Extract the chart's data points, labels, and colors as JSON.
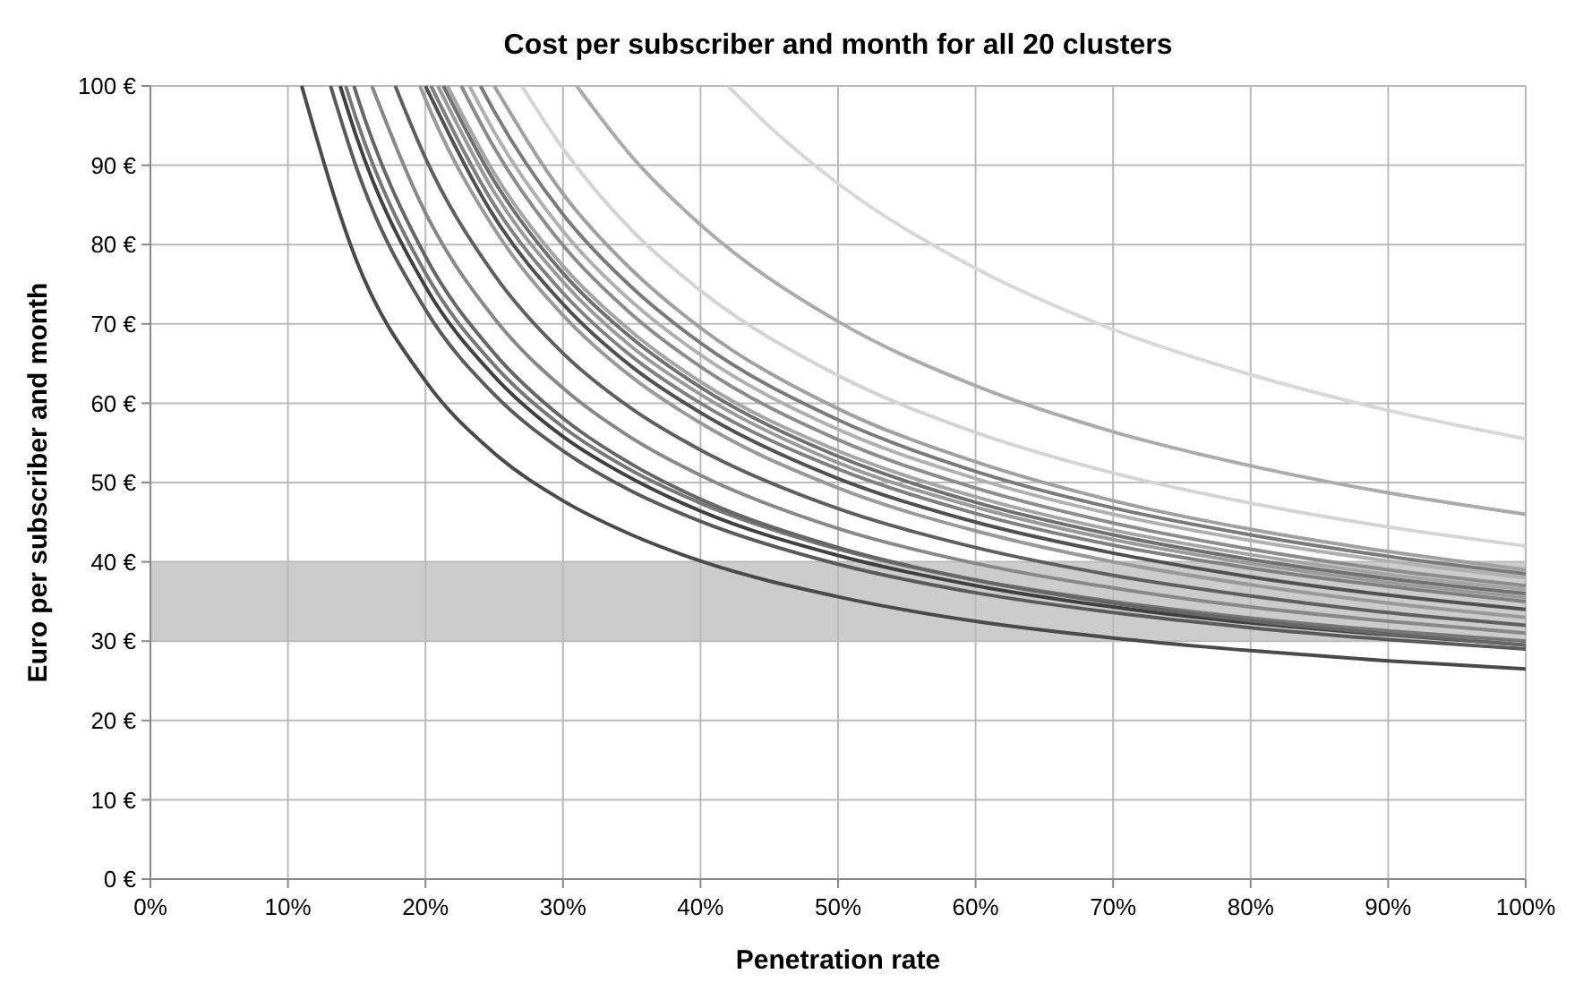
{
  "chart_data": {
    "type": "line",
    "title": "Cost per subscriber and month for all 20 clusters",
    "xlabel": "Penetration rate",
    "ylabel": "Euro per subscriber and month",
    "xlim": [
      0,
      100
    ],
    "ylim": [
      0,
      100
    ],
    "xticks": [
      {
        "value": 0,
        "label": "0%"
      },
      {
        "value": 10,
        "label": "10%"
      },
      {
        "value": 20,
        "label": "20%"
      },
      {
        "value": 30,
        "label": "30%"
      },
      {
        "value": 40,
        "label": "40%"
      },
      {
        "value": 50,
        "label": "50%"
      },
      {
        "value": 60,
        "label": "60%"
      },
      {
        "value": 70,
        "label": "70%"
      },
      {
        "value": 80,
        "label": "80%"
      },
      {
        "value": 90,
        "label": "90%"
      },
      {
        "value": 100,
        "label": "100%"
      }
    ],
    "yticks": [
      {
        "value": 0,
        "label": "0 €"
      },
      {
        "value": 10,
        "label": "10 €"
      },
      {
        "value": 20,
        "label": "20 €"
      },
      {
        "value": 30,
        "label": "30 €"
      },
      {
        "value": 40,
        "label": "40 €"
      },
      {
        "value": 50,
        "label": "50 €"
      },
      {
        "value": 60,
        "label": "60 €"
      },
      {
        "value": 70,
        "label": "70 €"
      },
      {
        "value": 80,
        "label": "80 €"
      },
      {
        "value": 90,
        "label": "90 €"
      },
      {
        "value": 100,
        "label": "100 €"
      }
    ],
    "grid": true,
    "bands": [
      {
        "axis": "y",
        "from": 30,
        "to": 40,
        "color": "#cccccc"
      }
    ],
    "series": [
      {
        "color": "#4a4a4a",
        "x": [
          11,
          15,
          20,
          25,
          30,
          35,
          40,
          50,
          60,
          70,
          80,
          90,
          100
        ],
        "values": [
          100,
          77.9,
          62.8,
          53.7,
          47.7,
          43.4,
          40.1,
          35.6,
          32.5,
          30.4,
          28.8,
          27.5,
          26.5
        ]
      },
      {
        "color": "#5a5a5a",
        "x": [
          13.1,
          15,
          20,
          25,
          30,
          35,
          40,
          50,
          60,
          70,
          80,
          90,
          100
        ],
        "values": [
          100,
          89.6,
          71.8,
          61.1,
          54.0,
          48.9,
          45.1,
          39.7,
          36.1,
          33.6,
          31.7,
          30.2,
          29.0
        ]
      },
      {
        "color": "#404040",
        "x": [
          13.8,
          15,
          20,
          25,
          30,
          35,
          40,
          50,
          60,
          70,
          80,
          90,
          100
        ],
        "values": [
          100,
          93.5,
          74.7,
          63.4,
          55.8,
          50.5,
          46.4,
          40.8,
          37.0,
          34.3,
          32.3,
          30.8,
          29.5
        ]
      },
      {
        "color": "#777777",
        "x": [
          14.2,
          15,
          20,
          25,
          30,
          35,
          40,
          50,
          60,
          70,
          80,
          90,
          100
        ],
        "values": [
          100,
          95.7,
          76.4,
          64.8,
          57.0,
          51.5,
          47.4,
          41.6,
          37.7,
          35.0,
          32.9,
          31.3,
          30.0
        ]
      },
      {
        "color": "#666666",
        "x": [
          14.8,
          15,
          20,
          25,
          30,
          35,
          40,
          50,
          60,
          70,
          80,
          90,
          100
        ],
        "values": [
          100,
          98.9,
          78.5,
          66.3,
          58.1,
          52.3,
          47.9,
          41.8,
          37.7,
          34.8,
          32.6,
          30.9,
          29.5
        ]
      },
      {
        "color": "#888888",
        "x": [
          16.1,
          20,
          25,
          30,
          35,
          40,
          50,
          60,
          70,
          80,
          90,
          100
        ],
        "values": [
          100,
          84.0,
          70.7,
          61.9,
          55.6,
          50.9,
          44.2,
          39.8,
          36.7,
          34.3,
          32.5,
          31.0
        ]
      },
      {
        "color": "#5f5f5f",
        "x": [
          17.8,
          20,
          25,
          30,
          35,
          40,
          50,
          60,
          70,
          80,
          90,
          100
        ],
        "values": [
          100,
          90.9,
          76.2,
          66.3,
          59.3,
          54.1,
          46.7,
          41.8,
          38.3,
          35.7,
          33.6,
          32.0
        ]
      },
      {
        "color": "#999999",
        "x": [
          19.6,
          20,
          25,
          30,
          35,
          40,
          50,
          60,
          70,
          80,
          90,
          100
        ],
        "values": [
          100,
          98.3,
          82.0,
          71.1,
          63.3,
          57.5,
          49.3,
          43.9,
          40.0,
          37.1,
          34.8,
          33.0
        ]
      },
      {
        "color": "#505050",
        "x": [
          20,
          25,
          30,
          35,
          40,
          50,
          60,
          70,
          80,
          90,
          100
        ],
        "values": [
          100,
          83.5,
          72.5,
          64.6,
          58.8,
          50.5,
          45.0,
          41.1,
          38.1,
          35.8,
          34.0
        ]
      },
      {
        "color": "#808080",
        "x": [
          20.4,
          25,
          30,
          35,
          40,
          50,
          60,
          70,
          80,
          90,
          100
        ],
        "values": [
          100,
          85.0,
          73.9,
          65.9,
          60.0,
          51.7,
          46.1,
          42.1,
          39.2,
          36.9,
          35.0
        ]
      },
      {
        "color": "#9a9a9a",
        "x": [
          20.9,
          25,
          30,
          35,
          40,
          50,
          60,
          70,
          80,
          90,
          100
        ],
        "values": [
          100,
          86.6,
          75.3,
          67.1,
          61.1,
          52.5,
          46.9,
          42.8,
          39.8,
          37.4,
          35.5
        ]
      },
      {
        "color": "#707070",
        "x": [
          21.3,
          25,
          30,
          35,
          40,
          50,
          60,
          70,
          80,
          90,
          100
        ],
        "values": [
          100,
          88.0,
          76.4,
          68.2,
          62.0,
          53.3,
          47.5,
          43.4,
          40.3,
          37.9,
          36.0
        ]
      },
      {
        "color": "#a5a5a5",
        "x": [
          21.6,
          25,
          30,
          35,
          40,
          50,
          60,
          70,
          80,
          90,
          100
        ],
        "values": [
          100,
          89.0,
          77.3,
          69.0,
          62.7,
          54.0,
          48.2,
          44.0,
          40.9,
          38.4,
          36.5
        ]
      },
      {
        "color": "#8c8c8c",
        "x": [
          22.6,
          25,
          30,
          35,
          40,
          50,
          60,
          70,
          80,
          90,
          100
        ],
        "values": [
          100,
          92.2,
          79.9,
          71.2,
          64.6,
          55.4,
          49.3,
          44.9,
          41.6,
          39.0,
          37.0
        ]
      },
      {
        "color": "#b0b0b0",
        "x": [
          23.2,
          25,
          30,
          35,
          40,
          50,
          60,
          70,
          80,
          90,
          100
        ],
        "values": [
          100,
          94.2,
          81.7,
          72.8,
          66.1,
          56.7,
          50.5,
          46.0,
          42.7,
          40.1,
          38.0
        ]
      },
      {
        "color": "#7a7a7a",
        "x": [
          24,
          25,
          30,
          35,
          40,
          50,
          60,
          70,
          80,
          90,
          100
        ],
        "values": [
          100,
          96.8,
          83.8,
          74.6,
          67.6,
          57.9,
          51.4,
          46.8,
          43.4,
          40.7,
          38.5
        ]
      },
      {
        "color": "#a0a0a0",
        "x": [
          25,
          30,
          35,
          40,
          50,
          60,
          70,
          80,
          90,
          100
        ],
        "values": [
          100,
          86.4,
          76.8,
          69.5,
          59.3,
          52.6,
          47.7,
          44.1,
          41.3,
          39.0
        ]
      },
      {
        "color": "#d4d4d4",
        "x": [
          27,
          30,
          35,
          40,
          50,
          60,
          70,
          80,
          90,
          100
        ],
        "values": [
          100,
          92.1,
          81.8,
          74.2,
          63.5,
          56.3,
          51.2,
          47.4,
          44.4,
          42.0
        ]
      },
      {
        "color": "#ababab",
        "x": [
          31,
          35,
          40,
          50,
          60,
          70,
          80,
          90,
          100
        ],
        "values": [
          100,
          91.1,
          82.5,
          70.3,
          62.2,
          56.4,
          52.1,
          48.7,
          46.0
        ]
      },
      {
        "color": "#d8d8d8",
        "x": [
          42,
          45,
          50,
          60,
          70,
          80,
          90,
          100
        ],
        "values": [
          100,
          94.9,
          87.7,
          77.0,
          69.3,
          63.6,
          59.1,
          55.5
        ]
      }
    ]
  }
}
